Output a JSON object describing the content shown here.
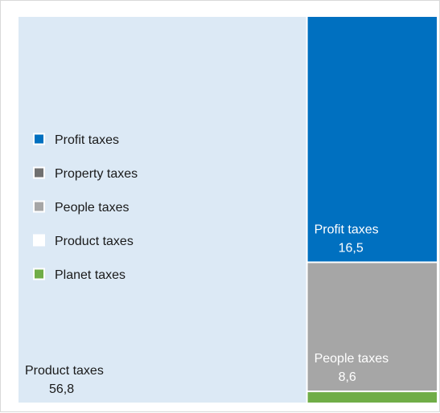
{
  "chart_data": {
    "type": "treemap",
    "title": "",
    "legend": {
      "placement": "left",
      "items": [
        {
          "label": "Profit taxes",
          "color": "#0070c0"
        },
        {
          "label": "Property taxes",
          "color": "#707070"
        },
        {
          "label": "People taxes",
          "color": "#a6a6a6"
        },
        {
          "label": "Product taxes",
          "color": "#ffffff"
        },
        {
          "label": "Planet taxes",
          "color": "#70ad47"
        }
      ]
    },
    "tiles": [
      {
        "name": "Product taxes",
        "value": 56.8,
        "value_label": "56,8",
        "color": "#dce9f5",
        "label_color": "#1a1a1a"
      },
      {
        "name": "Profit taxes",
        "value": 16.5,
        "value_label": "16,5",
        "color": "#0070c0",
        "label_color": "#ffffff"
      },
      {
        "name": "People taxes",
        "value": 8.6,
        "value_label": "8,6",
        "color": "#a6a6a6",
        "label_color": "#ffffff"
      },
      {
        "name": "Planet taxes",
        "value": 0.7,
        "value_label": "",
        "color": "#70ad47",
        "label_color": "#ffffff"
      }
    ]
  }
}
